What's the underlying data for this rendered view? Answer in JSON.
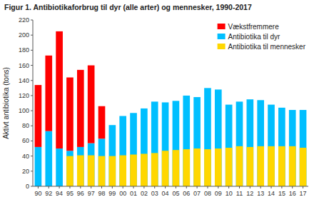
{
  "chart_data": {
    "type": "bar",
    "title": "Figur 1. Antibiotikaforbrug til dyr (alle arter) og mennesker, 1990-2017",
    "y_label": "Aktivt antibiotika (tons)",
    "categories": [
      "90",
      "92",
      "94",
      "95",
      "96",
      "97",
      "98",
      "99",
      "00",
      "01",
      "02",
      "03",
      "04",
      "05",
      "06",
      "07",
      "08",
      "09",
      "10",
      "11",
      "12",
      "13",
      "14",
      "15",
      "16",
      "17"
    ],
    "series": [
      {
        "name": "Vækstfremmere",
        "color": "#FF0000",
        "type": "bar",
        "values": [
          82,
          100,
          155,
          97,
          102,
          103,
          43,
          0,
          0,
          0,
          0,
          0,
          0,
          0,
          0,
          0,
          0,
          0,
          0,
          0,
          0,
          0,
          0,
          0,
          0,
          0
        ]
      },
      {
        "name": "Antibiotika til dyr",
        "color": "#00BFFF",
        "type": "bar",
        "values": [
          52,
          73,
          50,
          47,
          52,
          57,
          63,
          81,
          93,
          97,
          103,
          112,
          111,
          113,
          120,
          118,
          130,
          128,
          108,
          112,
          115,
          114,
          108,
          104,
          101,
          101
        ]
      },
      {
        "name": "Antibiotika til mennesker",
        "color": "#FFD700",
        "type": "overlay",
        "values": [
          0,
          0,
          0,
          40,
          41,
          41,
          40,
          40,
          41,
          42,
          43,
          44,
          47,
          48,
          49,
          50,
          49,
          50,
          51,
          53,
          52,
          53,
          53,
          53,
          53,
          51
        ]
      }
    ],
    "stacked": true,
    "ylim": [
      0,
      220
    ],
    "yticks": [
      0,
      20,
      40,
      60,
      80,
      100,
      120,
      140,
      160,
      180,
      200,
      220
    ],
    "grid": false,
    "legend": "upper right"
  }
}
